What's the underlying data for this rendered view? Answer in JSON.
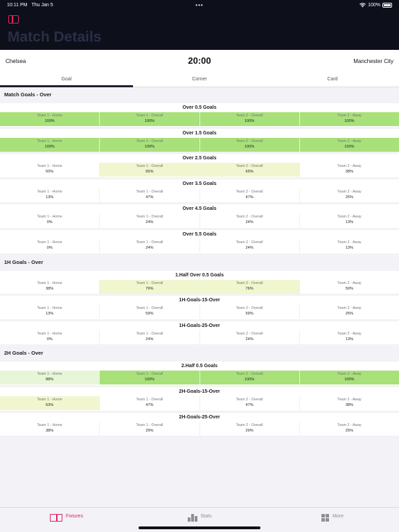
{
  "status": {
    "time": "10:11 PM",
    "date": "Thu Jan 5",
    "dots": "•••",
    "battery": "100%"
  },
  "nav": {
    "title": "Match Details"
  },
  "match": {
    "home_team": "Chelsea",
    "away_team": "Manchester City",
    "kickoff": "20:00"
  },
  "tabs": [
    {
      "label": "Goal"
    },
    {
      "label": "Corner"
    },
    {
      "label": "Card"
    }
  ],
  "columns": [
    "Team 1 - Home",
    "Team 1 - Overall",
    "Team 2 - Overall",
    "Team 2 - Away"
  ],
  "levels": {
    "green": "#a8e07a",
    "light": "#e6f6d6",
    "yellow": "#f1f6cf"
  },
  "sections": [
    {
      "title": "Match Goals - Over",
      "markets": [
        {
          "name": "Over 0.5 Goals",
          "values": [
            "100%",
            "100%",
            "100%",
            "100%"
          ],
          "levels": [
            "green",
            "green",
            "green",
            "green"
          ]
        },
        {
          "name": "Over 1.5 Goals",
          "values": [
            "100%",
            "100%",
            "100%",
            "100%"
          ],
          "levels": [
            "green",
            "green",
            "green",
            "green"
          ]
        },
        {
          "name": "Over 2.5 Goals",
          "values": [
            "50%",
            "65%",
            "65%",
            "38%"
          ],
          "levels": [
            "",
            "yellow",
            "yellow",
            ""
          ]
        },
        {
          "name": "Over 3.5 Goals",
          "values": [
            "13%",
            "47%",
            "47%",
            "25%"
          ],
          "levels": [
            "",
            "",
            "",
            ""
          ]
        },
        {
          "name": "Over 4.5 Goals",
          "values": [
            "0%",
            "24%",
            "24%",
            "13%"
          ],
          "levels": [
            "",
            "",
            "",
            ""
          ]
        },
        {
          "name": "Over 5.5 Goals",
          "values": [
            "0%",
            "24%",
            "24%",
            "13%"
          ],
          "levels": [
            "",
            "",
            "",
            ""
          ]
        }
      ]
    },
    {
      "title": "1H Goals - Over",
      "markets": [
        {
          "name": "1.Half Over 0.5 Goals",
          "values": [
            "38%",
            "76%",
            "76%",
            "50%"
          ],
          "levels": [
            "",
            "yellow",
            "yellow",
            ""
          ]
        },
        {
          "name": "1H-Goals-15-Over",
          "values": [
            "13%",
            "59%",
            "59%",
            "25%"
          ],
          "levels": [
            "",
            "",
            "",
            ""
          ]
        },
        {
          "name": "1H-Goals-25-Over",
          "values": [
            "0%",
            "24%",
            "24%",
            "13%"
          ],
          "levels": [
            "",
            "",
            "",
            ""
          ]
        }
      ]
    },
    {
      "title": "2H Goals - Over",
      "markets": [
        {
          "name": "2.Half 0.5 Goals",
          "values": [
            "88%",
            "100%",
            "100%",
            "100%"
          ],
          "levels": [
            "light",
            "green",
            "green",
            "green"
          ]
        },
        {
          "name": "2H-Goals-15-Over",
          "values": [
            "63%",
            "47%",
            "47%",
            "38%"
          ],
          "levels": [
            "yellow",
            "",
            "",
            ""
          ]
        },
        {
          "name": "2H-Goals-25-Over",
          "values": [
            "38%",
            "29%",
            "29%",
            "25%"
          ],
          "levels": [
            "",
            "",
            "",
            ""
          ]
        }
      ]
    }
  ],
  "tabbar": [
    {
      "label": "Fixtures",
      "icon": "fixtures-icon",
      "active": true
    },
    {
      "label": "Stats",
      "icon": "stats-icon",
      "active": false
    },
    {
      "label": "More",
      "icon": "more-icon",
      "active": false
    }
  ]
}
